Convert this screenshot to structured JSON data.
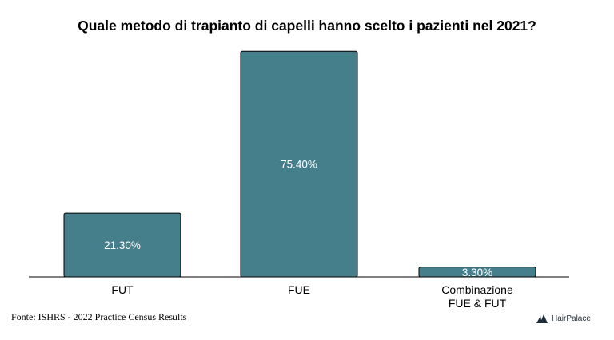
{
  "chart_data": {
    "type": "bar",
    "title": "Quale metodo di trapianto di capelli hanno scelto i pazienti nel 2021?",
    "categories": [
      [
        "FUT"
      ],
      [
        "FUE"
      ],
      [
        "Combinazione",
        "FUE & FUT"
      ]
    ],
    "values": [
      21.3,
      75.4,
      3.3
    ],
    "value_labels": [
      "21.30%",
      "75.40%",
      "3.30%"
    ],
    "unit": "%",
    "ylim": [
      0,
      80
    ],
    "grid": false,
    "legend": "none",
    "bar_color": "#467f8c"
  },
  "footer": {
    "source": "Fonte:  ISHRS - 2022 Practice Census Results",
    "brand_name": "HairPalace",
    "brand_icon": "hairpalace-logo-icon"
  }
}
